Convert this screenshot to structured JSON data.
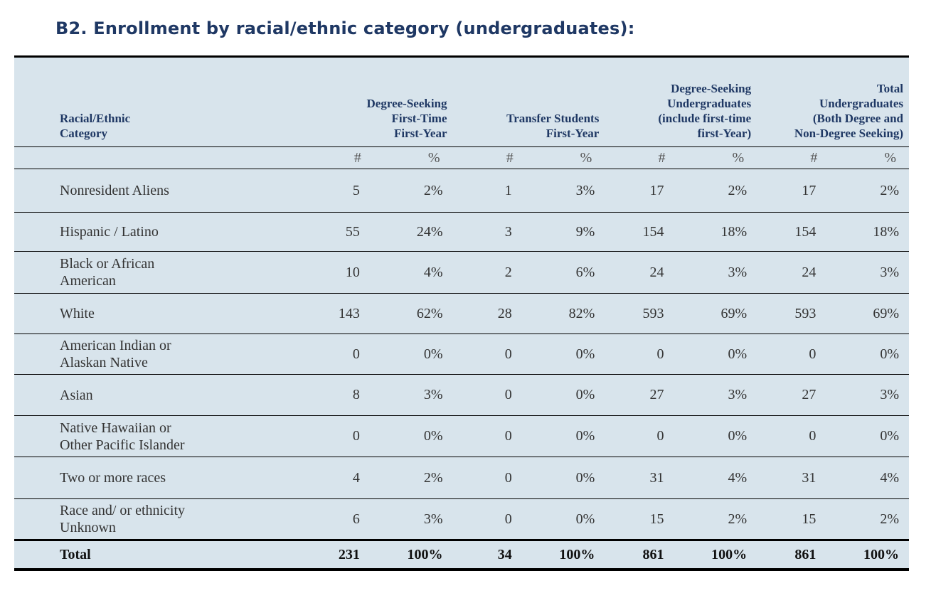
{
  "title": "B2. Enrollment by racial/ethnic category (undergraduates):",
  "headers": {
    "category": [
      "Racial/Ethnic",
      "Category"
    ],
    "groups": [
      [
        "Degree-Seeking",
        "First-Time",
        "First-Year"
      ],
      [
        "Transfer Students",
        "First-Year"
      ],
      [
        "Degree-Seeking",
        "Undergraduates",
        "(include first-time",
        "first-Year)"
      ],
      [
        "Total",
        "Undergraduates",
        "(Both Degree and",
        "Non-Degree Seeking)"
      ]
    ],
    "num_symbol": "#",
    "pct_symbol": "%"
  },
  "rows": [
    {
      "label": [
        "Nonresident Aliens"
      ],
      "values": [
        "5",
        "2%",
        "1",
        "3%",
        "17",
        "2%",
        "17",
        "2%"
      ]
    },
    {
      "label": [
        "Hispanic / Latino"
      ],
      "values": [
        "55",
        "24%",
        "3",
        "9%",
        "154",
        "18%",
        "154",
        "18%"
      ]
    },
    {
      "label": [
        "Black or African",
        "American"
      ],
      "values": [
        "10",
        "4%",
        "2",
        "6%",
        "24",
        "3%",
        "24",
        "3%"
      ]
    },
    {
      "label": [
        "White"
      ],
      "values": [
        "143",
        "62%",
        "28",
        "82%",
        "593",
        "69%",
        "593",
        "69%"
      ]
    },
    {
      "label": [
        "American Indian or",
        "Alaskan Native"
      ],
      "values": [
        "0",
        "0%",
        "0",
        "0%",
        "0",
        "0%",
        "0",
        "0%"
      ]
    },
    {
      "label": [
        "Asian"
      ],
      "values": [
        "8",
        "3%",
        "0",
        "0%",
        "27",
        "3%",
        "27",
        "3%"
      ]
    },
    {
      "label": [
        "Native Hawaiian or",
        "Other Pacific Islander"
      ],
      "values": [
        "0",
        "0%",
        "0",
        "0%",
        "0",
        "0%",
        "0",
        "0%"
      ]
    },
    {
      "label": [
        "Two or more races"
      ],
      "values": [
        "4",
        "2%",
        "0",
        "0%",
        "31",
        "4%",
        "31",
        "4%"
      ]
    },
    {
      "label": [
        "Race and/ or ethnicity",
        "Unknown"
      ],
      "values": [
        "6",
        "3%",
        "0",
        "0%",
        "15",
        "2%",
        "15",
        "2%"
      ]
    }
  ],
  "total": {
    "label": "Total",
    "values": [
      "231",
      "100%",
      "34",
      "100%",
      "861",
      "100%",
      "861",
      "100%"
    ]
  }
}
